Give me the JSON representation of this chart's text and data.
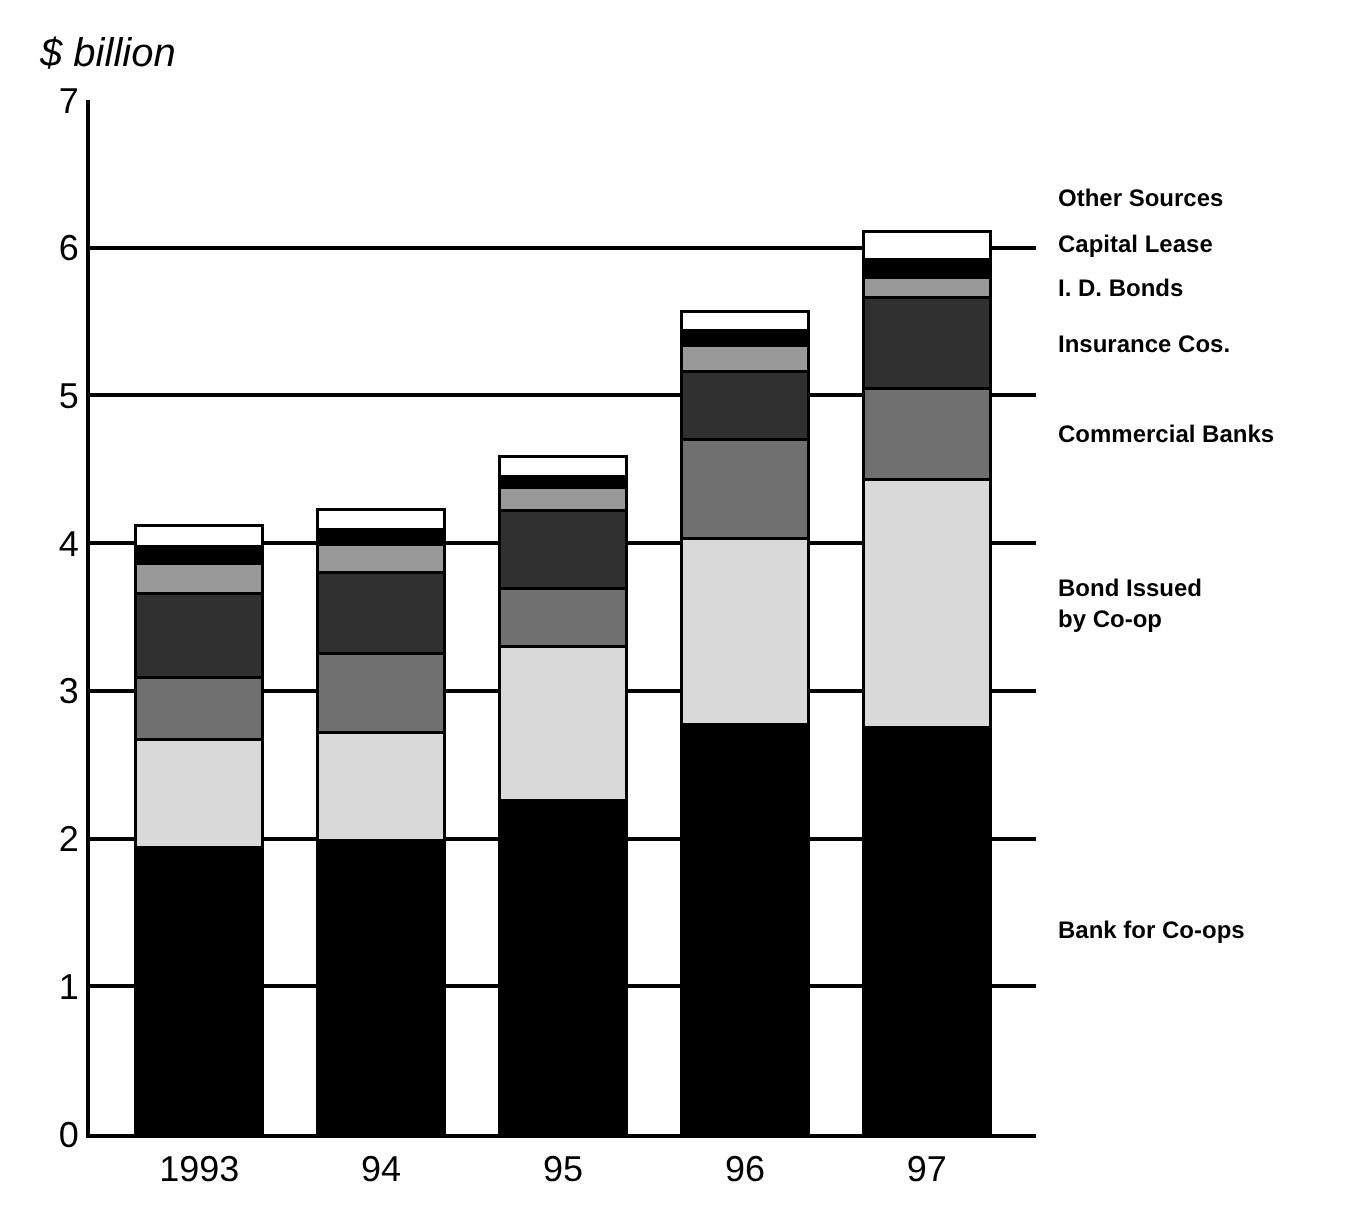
{
  "chart_data": {
    "type": "bar",
    "stacked": true,
    "ylabel": "$ billion",
    "categories": [
      "1993",
      "94",
      "95",
      "96",
      "97"
    ],
    "ylim": [
      0,
      7
    ],
    "yticks": [
      0,
      1,
      2,
      3,
      4,
      5,
      6,
      7
    ],
    "grid": "y",
    "legend": false,
    "series": [
      {
        "name": "Bank for Co-ops",
        "color": "#000000",
        "values": [
          1.94,
          1.99,
          2.26,
          2.77,
          2.75
        ]
      },
      {
        "name": "Bond Issued\nby Co-op",
        "color": "#d9d9d9",
        "values": [
          0.73,
          0.73,
          1.04,
          1.26,
          1.68
        ]
      },
      {
        "name": "Commercial Banks",
        "color": "#707070",
        "values": [
          0.42,
          0.53,
          0.39,
          0.67,
          0.62
        ]
      },
      {
        "name": "Insurance Cos.",
        "color": "#303030",
        "values": [
          0.57,
          0.55,
          0.53,
          0.46,
          0.61
        ]
      },
      {
        "name": "I. D. Bonds",
        "color": "#999999",
        "values": [
          0.2,
          0.19,
          0.16,
          0.18,
          0.14
        ]
      },
      {
        "name": "Capital Lease",
        "color": "#000000",
        "values": [
          0.12,
          0.1,
          0.07,
          0.1,
          0.12
        ]
      },
      {
        "name": "Other Sources",
        "color": "#ffffff",
        "values": [
          0.14,
          0.14,
          0.14,
          0.13,
          0.19
        ]
      }
    ]
  }
}
